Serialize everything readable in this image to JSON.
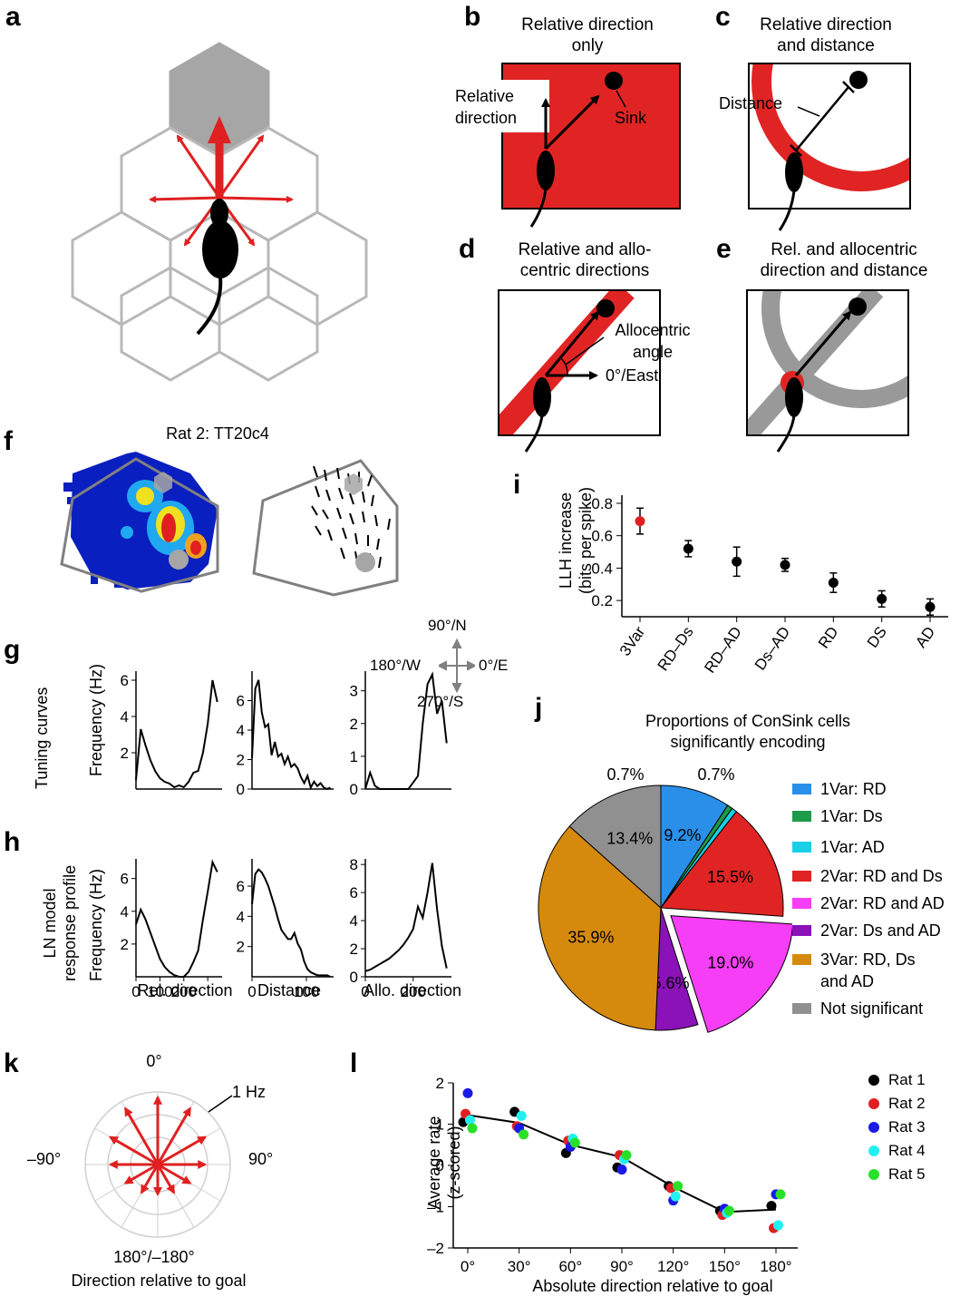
{
  "labels": {
    "a": "a",
    "b": "b",
    "c": "c",
    "d": "d",
    "e": "e",
    "f": "f",
    "g": "g",
    "h": "h",
    "i": "i",
    "j": "j",
    "k": "k",
    "l": "l"
  },
  "colors": {
    "red": "#e02020",
    "grey": "#a6a6a6",
    "light_grey": "#d0d0d0",
    "black": "#000000"
  },
  "panel_b": {
    "title": "Relative direction\nonly",
    "rel_label": "Relative\ndirection",
    "sink_label": "Sink"
  },
  "panel_c": {
    "title": "Relative direction\nand distance",
    "distance_label": "Distance"
  },
  "panel_d": {
    "title": "Relative and allo-\ncentric directions",
    "allo_label": "Allocentric\nangle",
    "east_label": "0°/East"
  },
  "panel_e": {
    "title": "Rel. and allocentric\ndirection and distance"
  },
  "panel_f": {
    "title": "Rat 2: TT20c4"
  },
  "compass": {
    "north": "90°/N",
    "west": "180°/W",
    "east": "0°/E",
    "south": "270°/S"
  },
  "panel_g": {
    "row_label": "Tuning curves",
    "ylabel": "Frequency (Hz)"
  },
  "panel_h": {
    "row_label": "LN model\nresponse profile",
    "ylabel": "Frequency (Hz)",
    "xlabels": [
      "Rel. direction",
      "Distance",
      "Allo. direction"
    ]
  },
  "chart_data": [
    {
      "id": "i",
      "type": "scatter",
      "ylabel": "LLH increase\n(bits per spike)",
      "categories": [
        "3Var",
        "RD–Ds",
        "RD–AD",
        "Ds–AD",
        "RD",
        "DS",
        "AD"
      ],
      "values": [
        0.69,
        0.52,
        0.44,
        0.42,
        0.31,
        0.21,
        0.16
      ],
      "errors": [
        0.08,
        0.05,
        0.09,
        0.04,
        0.06,
        0.05,
        0.05
      ],
      "ylim": [
        0.1,
        0.85
      ],
      "yticks": [
        0.2,
        0.4,
        0.6,
        0.8
      ]
    },
    {
      "id": "j",
      "type": "pie",
      "title": "Proportions of ConSink cells\nsignificantly encoding",
      "slices": [
        {
          "label": "1Var: RD",
          "value": 9.2,
          "text": "9.2%",
          "color": "#2a8fe8"
        },
        {
          "label": "1Var: Ds",
          "value": 0.7,
          "text": "0.7%",
          "color": "#1d9a4a"
        },
        {
          "label": "1Var: AD",
          "value": 0.7,
          "text": "0.7%",
          "color": "#19d0e6"
        },
        {
          "label": "2Var: RD and Ds",
          "value": 15.5,
          "text": "15.5%",
          "color": "#e02424"
        },
        {
          "label": "2Var: RD and AD",
          "value": 19.0,
          "text": "19.0%",
          "color": "#f53ef5"
        },
        {
          "label": "2Var: Ds and AD",
          "value": 5.6,
          "text": "5.6%",
          "color": "#8a12b8"
        },
        {
          "label": "3Var: RD, Ds\nand AD",
          "value": 35.9,
          "text": "35.9%",
          "color": "#d58a0e"
        },
        {
          "label": "Not significant",
          "value": 13.4,
          "text": "13.4%",
          "color": "#909090"
        }
      ]
    },
    {
      "id": "k",
      "type": "polar",
      "title": "Direction relative to goal",
      "scale_label": "1 Hz",
      "angle_labels": {
        "top": "0°",
        "left": "–90°",
        "right": "90°",
        "bottom": "180°/–180°"
      },
      "angles_deg": [
        0,
        30,
        60,
        90,
        120,
        150,
        180,
        210,
        240,
        270,
        300,
        330
      ],
      "magnitudes": [
        1.35,
        1.3,
        1.1,
        0.95,
        0.75,
        0.65,
        0.6,
        0.65,
        0.75,
        0.95,
        1.1,
        1.3
      ]
    },
    {
      "id": "l",
      "type": "line",
      "xlabel": "Absolute direction relative to goal",
      "ylabel": "Average rate\n(z-scored)",
      "x": [
        0,
        30,
        60,
        90,
        120,
        150,
        180
      ],
      "xtick_labels": [
        "0°",
        "30°",
        "60°",
        "90°",
        "120°",
        "150°",
        "180°"
      ],
      "ylim": [
        -2,
        2
      ],
      "yticks": [
        -2,
        -1,
        0,
        1,
        2
      ],
      "mean": [
        1.22,
        1.03,
        0.5,
        0.2,
        -0.52,
        -1.13,
        -1.07
      ],
      "series": [
        {
          "name": "Rat 1",
          "color": "#000000",
          "values": [
            1.05,
            1.3,
            0.3,
            -0.05,
            -0.5,
            -1.1,
            -0.98
          ]
        },
        {
          "name": "Rat 2",
          "color": "#e02020",
          "values": [
            1.25,
            0.95,
            0.6,
            0.25,
            -0.55,
            -1.2,
            -1.52
          ]
        },
        {
          "name": "Rat 3",
          "color": "#1a1ae6",
          "values": [
            1.75,
            0.9,
            0.45,
            -0.1,
            -0.85,
            -1.05,
            -0.7
          ]
        },
        {
          "name": "Rat 4",
          "color": "#22f0f0",
          "values": [
            1.1,
            1.2,
            0.65,
            0.15,
            -0.75,
            -1.15,
            -1.45
          ]
        },
        {
          "name": "Rat 5",
          "color": "#28e028",
          "values": [
            0.9,
            0.75,
            0.55,
            0.25,
            -0.5,
            -1.1,
            -0.7
          ]
        }
      ]
    },
    {
      "id": "g1",
      "type": "line",
      "yticks": [
        2,
        4,
        6
      ],
      "ymax": 6.5,
      "xmax": 360,
      "x": [
        0,
        20,
        40,
        60,
        80,
        100,
        120,
        140,
        160,
        180,
        200,
        220,
        240,
        260,
        280,
        300,
        320,
        340
      ],
      "y": [
        0.5,
        3.3,
        2.4,
        1.6,
        1.0,
        0.6,
        0.4,
        0.3,
        0.1,
        0.2,
        0.1,
        0.4,
        0.9,
        1.0,
        2.0,
        3.6,
        6.0,
        4.8
      ]
    },
    {
      "id": "g2",
      "type": "line",
      "yticks": [
        0,
        2,
        4,
        6
      ],
      "ymax": 8,
      "xmax": 150,
      "x": [
        0,
        6,
        12,
        18,
        24,
        30,
        36,
        42,
        48,
        54,
        60,
        66,
        72,
        78,
        84,
        90,
        96,
        102,
        108,
        114,
        120,
        126,
        132,
        138,
        144
      ],
      "y": [
        2.1,
        6.8,
        7.4,
        5.2,
        4.2,
        4.4,
        2.3,
        3.2,
        2.2,
        2.4,
        1.7,
        2.2,
        1.5,
        1.7,
        1.4,
        0.8,
        0.4,
        0.9,
        0.1,
        0.5,
        0.2,
        0.4,
        0.1,
        0.0,
        0.1
      ]
    },
    {
      "id": "g3",
      "type": "line",
      "yticks": [
        0,
        1,
        2,
        3
      ],
      "ymax": 3.6,
      "xmax": 360,
      "x": [
        0,
        20,
        40,
        60,
        80,
        100,
        120,
        140,
        160,
        180,
        200,
        220,
        240,
        260,
        280,
        300,
        320,
        340
      ],
      "y": [
        0.0,
        0.5,
        0.1,
        0.0,
        0.0,
        0.0,
        0.0,
        0.0,
        0.0,
        0.0,
        0.2,
        0.4,
        2.0,
        3.2,
        3.5,
        2.3,
        2.7,
        1.4
      ]
    },
    {
      "id": "h1",
      "type": "line",
      "yticks": [
        2,
        4,
        6
      ],
      "ymax": 7.2,
      "xmax": 360,
      "xticks": [
        0,
        100,
        200,
        300
      ],
      "xtick_labels": [
        "0",
        "100",
        "200",
        ""
      ],
      "x": [
        0,
        20,
        40,
        60,
        80,
        100,
        120,
        140,
        160,
        180,
        200,
        220,
        240,
        260,
        280,
        300,
        320,
        340
      ],
      "y": [
        3.2,
        4.1,
        3.5,
        2.7,
        1.9,
        1.1,
        0.6,
        0.3,
        0.1,
        0.0,
        0.0,
        0.3,
        0.9,
        1.6,
        3.5,
        5.2,
        7.0,
        6.4
      ]
    },
    {
      "id": "h2",
      "type": "line",
      "yticks": [
        2,
        4,
        6
      ],
      "ymax": 7.8,
      "xmax": 150,
      "xticks": [
        0,
        100
      ],
      "xtick_labels": [
        "0",
        "100"
      ],
      "x": [
        0,
        6,
        12,
        18,
        24,
        30,
        36,
        42,
        48,
        54,
        60,
        66,
        72,
        78,
        84,
        90,
        96,
        102,
        108,
        114,
        120,
        126,
        132,
        138,
        144
      ],
      "y": [
        4.8,
        6.8,
        7.1,
        6.9,
        6.5,
        6.0,
        5.3,
        4.6,
        3.8,
        3.1,
        2.8,
        2.5,
        2.5,
        2.9,
        2.2,
        1.8,
        1.0,
        0.5,
        0.3,
        0.2,
        0.1,
        0.1,
        0.1,
        0.1,
        0.0
      ]
    },
    {
      "id": "h3",
      "type": "line",
      "yticks": [
        0,
        2,
        4,
        6,
        8
      ],
      "ymax": 8.4,
      "xmax": 360,
      "xticks": [
        0,
        200
      ],
      "xtick_labels": [
        "0",
        "200"
      ],
      "x": [
        0,
        20,
        40,
        60,
        80,
        100,
        120,
        140,
        160,
        180,
        200,
        220,
        240,
        260,
        280,
        300,
        320,
        340
      ],
      "y": [
        0.4,
        0.5,
        0.7,
        0.9,
        1.1,
        1.3,
        1.6,
        1.9,
        2.3,
        2.8,
        3.4,
        5.0,
        4.2,
        6.0,
        8.1,
        4.8,
        2.2,
        0.6
      ]
    }
  ]
}
